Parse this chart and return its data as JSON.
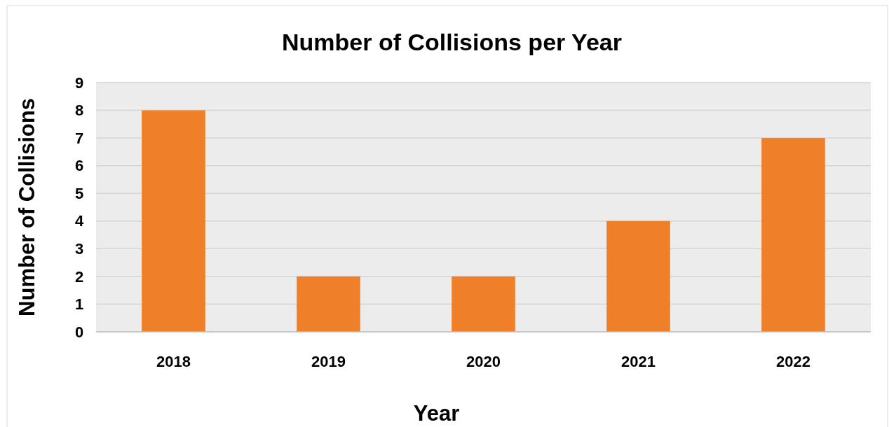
{
  "chart_data": {
    "type": "bar",
    "title": "Number of Collisions per Year",
    "xlabel": "Year",
    "ylabel": "Number of Collisions",
    "categories": [
      "2018",
      "2019",
      "2020",
      "2021",
      "2022"
    ],
    "values": [
      8,
      2,
      2,
      4,
      7
    ],
    "color": "#f07f2a",
    "ylim": [
      0,
      9
    ],
    "yticks": [
      0,
      1,
      2,
      3,
      4,
      5,
      6,
      7,
      8,
      9
    ],
    "grid": "y"
  }
}
